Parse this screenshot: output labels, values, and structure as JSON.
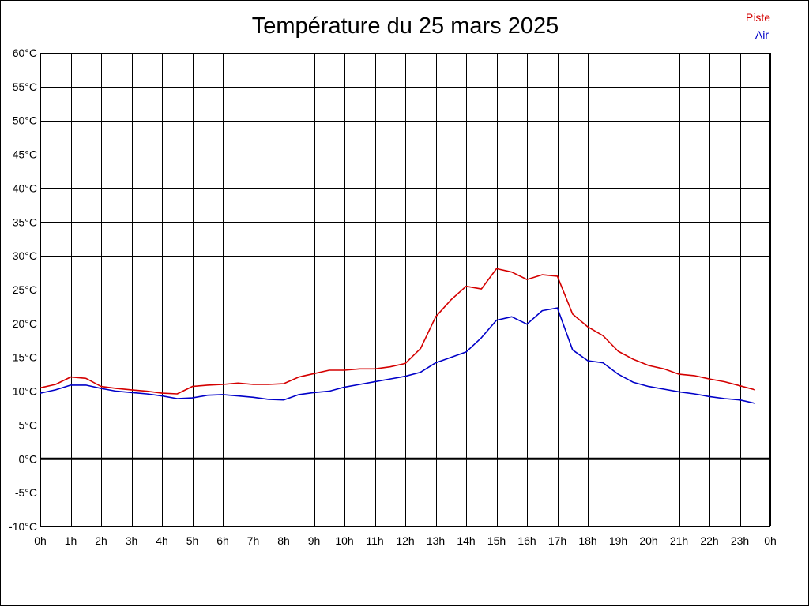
{
  "colors": {
    "piste": "#d40000",
    "air": "#0000c8",
    "grid": "#000000"
  },
  "chart_data": {
    "type": "line",
    "title": "Température du 25 mars 2025",
    "xlabel": "",
    "ylabel": "",
    "x_unit": "hour",
    "x_ticks": [
      0,
      1,
      2,
      3,
      4,
      5,
      6,
      7,
      8,
      9,
      10,
      11,
      12,
      13,
      14,
      15,
      16,
      17,
      18,
      19,
      20,
      21,
      22,
      23,
      24
    ],
    "x_tick_labels": [
      "0h",
      "1h",
      "2h",
      "3h",
      "4h",
      "5h",
      "6h",
      "7h",
      "8h",
      "9h",
      "10h",
      "11h",
      "12h",
      "13h",
      "14h",
      "15h",
      "16h",
      "17h",
      "18h",
      "19h",
      "20h",
      "21h",
      "22h",
      "23h",
      "0h"
    ],
    "xlim": [
      0,
      24
    ],
    "y_ticks": [
      60,
      55,
      50,
      45,
      40,
      35,
      30,
      25,
      20,
      15,
      10,
      5,
      0,
      -5,
      -10
    ],
    "y_tick_labels": [
      "60°C",
      "55°C",
      "50°C",
      "45°C",
      "40°C",
      "35°C",
      "30°C",
      "25°C",
      "20°C",
      "15°C",
      "10°C",
      "5°C",
      "0°C",
      "-5°C",
      "-10°C"
    ],
    "ylim": [
      -10,
      60
    ],
    "grid": true,
    "legend": "top-right",
    "x": [
      0,
      0.5,
      1,
      1.5,
      2,
      2.5,
      3,
      3.5,
      4,
      4.5,
      5,
      5.5,
      6,
      6.5,
      7,
      7.5,
      8,
      8.5,
      9,
      9.5,
      10,
      10.5,
      11,
      11.5,
      12,
      12.5,
      13,
      13.5,
      14,
      14.5,
      15,
      15.5,
      16,
      16.5,
      17,
      17.5,
      18,
      18.5,
      19,
      19.5,
      20,
      20.5,
      21,
      21.5,
      22,
      22.5,
      23,
      23.5
    ],
    "series": [
      {
        "name": "Piste",
        "color": "#d40000",
        "values": [
          10.5,
          11.0,
          12.1,
          11.9,
          10.7,
          10.4,
          10.2,
          10.0,
          9.7,
          9.6,
          10.7,
          10.9,
          11.0,
          11.2,
          11.0,
          11.0,
          11.1,
          12.1,
          12.6,
          13.1,
          13.1,
          13.3,
          13.3,
          13.6,
          14.1,
          16.3,
          21.0,
          23.5,
          25.5,
          25.1,
          28.1,
          27.6,
          26.5,
          27.2,
          27.0,
          21.4,
          19.5,
          18.2,
          15.9,
          14.7,
          13.8,
          13.3,
          12.5,
          12.3,
          11.8,
          11.4,
          10.8,
          10.2
        ]
      },
      {
        "name": "Air",
        "color": "#0000c8",
        "values": [
          9.7,
          10.2,
          10.9,
          10.9,
          10.4,
          10.0,
          9.8,
          9.6,
          9.3,
          8.9,
          9.0,
          9.4,
          9.5,
          9.3,
          9.1,
          8.8,
          8.7,
          9.5,
          9.8,
          10.0,
          10.6,
          11.0,
          11.4,
          11.8,
          12.2,
          12.8,
          14.2,
          15.0,
          15.8,
          17.9,
          20.5,
          21.0,
          19.9,
          21.9,
          22.3,
          16.1,
          14.5,
          14.2,
          12.5,
          11.3,
          10.7,
          10.3,
          9.9,
          9.6,
          9.2,
          8.9,
          8.7,
          8.2
        ]
      }
    ]
  }
}
